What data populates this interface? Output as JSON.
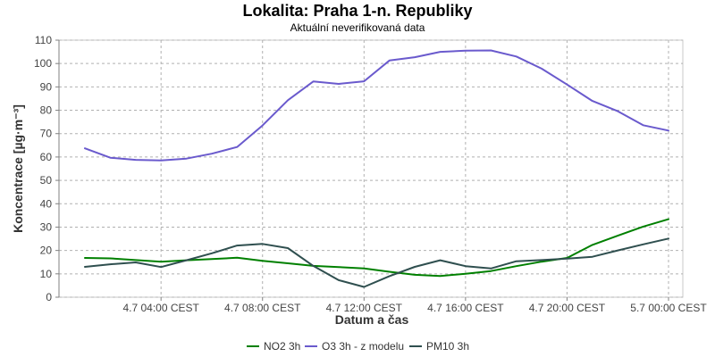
{
  "chart_data": {
    "type": "line",
    "title": "Lokalita: Praha 1-n. Republiky",
    "subtitle": "Aktuální neverifikovaná data",
    "xlabel": "Datum a čas",
    "ylabel": "Koncentrace [µg·m⁻³]",
    "ylim": [
      0,
      110
    ],
    "yticks": [
      0,
      10,
      20,
      30,
      40,
      50,
      60,
      70,
      80,
      90,
      100,
      110
    ],
    "xlim": [
      1,
      24
    ],
    "xticks": [
      {
        "value": 4,
        "label": "4.7 04:00 CEST"
      },
      {
        "value": 8,
        "label": "4.7 08:00 CEST"
      },
      {
        "value": 12,
        "label": "4.7 12:00 CEST"
      },
      {
        "value": 16,
        "label": "4.7 16:00 CEST"
      },
      {
        "value": 20,
        "label": "4.7 20:00 CEST"
      },
      {
        "value": 24,
        "label": "5.7 00:00 CEST"
      }
    ],
    "grid": true,
    "legend_position": "bottom",
    "series": [
      {
        "name": "NO2 3h",
        "color": "#008000",
        "x": [
          1,
          2,
          3,
          4,
          5,
          6,
          7,
          8,
          9,
          10,
          11,
          12,
          13,
          14,
          15,
          16,
          17,
          18,
          19,
          20,
          21,
          22,
          23,
          24
        ],
        "y": [
          16.8,
          16.6,
          15.9,
          15.2,
          15.8,
          16.3,
          16.9,
          15.6,
          14.5,
          13.4,
          12.9,
          12.3,
          10.9,
          9.6,
          9.1,
          10.0,
          11.2,
          13.3,
          15.2,
          16.8,
          22.4,
          26.3,
          30.2,
          33.4
        ]
      },
      {
        "name": "O3 3h - z modelu",
        "color": "#6a5acd",
        "x": [
          1,
          2,
          3,
          4,
          5,
          6,
          7,
          8,
          9,
          10,
          11,
          12,
          13,
          14,
          15,
          16,
          17,
          18,
          19,
          20,
          21,
          22,
          23,
          24
        ],
        "y": [
          63.7,
          59.7,
          58.8,
          58.5,
          59.3,
          61.4,
          64.3,
          73.5,
          84.3,
          92.3,
          91.3,
          92.4,
          101.3,
          102.7,
          105.0,
          105.5,
          105.6,
          103.0,
          97.8,
          91.0,
          84.0,
          79.6,
          73.6,
          71.3
        ]
      },
      {
        "name": "PM10 3h",
        "color": "#2f4f4f",
        "x": [
          1,
          2,
          3,
          4,
          5,
          6,
          7,
          8,
          9,
          10,
          11,
          12,
          13,
          14,
          15,
          16,
          17,
          18,
          19,
          20,
          21,
          22,
          23,
          24
        ],
        "y": [
          13.0,
          14.1,
          14.9,
          12.9,
          15.8,
          18.8,
          22.1,
          22.8,
          21.0,
          13.4,
          7.3,
          4.4,
          9.0,
          13.0,
          15.8,
          13.3,
          12.3,
          15.4,
          15.9,
          16.5,
          17.3,
          20.0,
          22.6,
          25.1
        ]
      }
    ]
  }
}
